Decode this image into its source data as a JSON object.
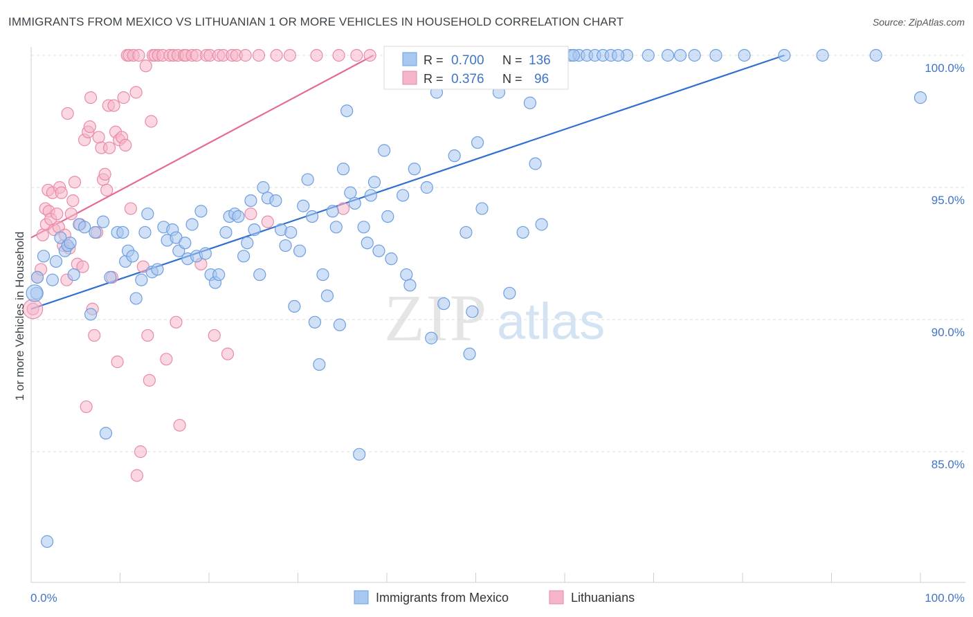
{
  "title": "IMMIGRANTS FROM MEXICO VS LITHUANIAN 1 OR MORE VEHICLES IN HOUSEHOLD CORRELATION CHART",
  "source": "Source: ZipAtlas.com",
  "watermark": {
    "zip": "ZIP",
    "atlas": "atlas"
  },
  "colors": {
    "blue_fill": "#a9c8f0",
    "blue_stroke": "#6d9ee0",
    "blue_line": "#2e6fd1",
    "pink_fill": "#f5b6c9",
    "pink_stroke": "#e98aa8",
    "pink_line": "#e46a94",
    "tick_text": "#3f74c8",
    "grid": "#dcdcdc"
  },
  "legend": {
    "rows": [
      {
        "r_label": "R =",
        "r_value": "0.700",
        "n_label": "N =",
        "n_value": "136"
      },
      {
        "r_label": "R =",
        "r_value": "0.376",
        "n_label": "N =",
        "n_value": "96"
      }
    ]
  },
  "chart_data": {
    "type": "scatter",
    "title": "IMMIGRANTS FROM MEXICO VS LITHUANIAN 1 OR MORE VEHICLES IN HOUSEHOLD CORRELATION CHART",
    "xlabel": "",
    "ylabel": "1 or more Vehicles in Household",
    "xlim": [
      0,
      100
    ],
    "ylim": [
      80.5,
      100.5
    ],
    "x_tick_labels": [
      "0.0%",
      "100.0%"
    ],
    "y_ticks": [
      85,
      90,
      95,
      100
    ],
    "y_tick_labels": [
      "85.0%",
      "90.0%",
      "95.0%",
      "100.0%"
    ],
    "grid": "horizontal-dashed",
    "legend_position": "top-center",
    "series": [
      {
        "name": "Immigrants from Mexico",
        "color": "#a9c8f0",
        "r": 0.7,
        "n": 136,
        "trend": {
          "x": [
            0,
            84.7
          ],
          "y": [
            90.4,
            100.0
          ]
        },
        "points": [
          [
            0.6,
            91.0
          ],
          [
            0.7,
            91.6
          ],
          [
            1.4,
            92.4
          ],
          [
            1.8,
            81.6
          ],
          [
            2.4,
            91.5
          ],
          [
            2.8,
            92.2
          ],
          [
            3.3,
            93.1
          ],
          [
            3.8,
            92.6
          ],
          [
            4.1,
            92.8
          ],
          [
            4.4,
            92.9
          ],
          [
            4.8,
            91.7
          ],
          [
            5.4,
            93.6
          ],
          [
            6.0,
            93.5
          ],
          [
            6.7,
            90.2
          ],
          [
            7.2,
            93.3
          ],
          [
            8.1,
            93.7
          ],
          [
            8.4,
            85.7
          ],
          [
            8.9,
            91.6
          ],
          [
            9.7,
            93.3
          ],
          [
            10.3,
            93.3
          ],
          [
            10.6,
            92.2
          ],
          [
            10.9,
            92.6
          ],
          [
            11.4,
            92.4
          ],
          [
            11.8,
            90.8
          ],
          [
            12.4,
            91.5
          ],
          [
            12.8,
            93.3
          ],
          [
            13.1,
            94.0
          ],
          [
            13.6,
            91.8
          ],
          [
            14.2,
            91.9
          ],
          [
            14.9,
            93.5
          ],
          [
            15.3,
            93.0
          ],
          [
            15.9,
            93.4
          ],
          [
            16.3,
            93.1
          ],
          [
            16.6,
            92.6
          ],
          [
            17.3,
            92.9
          ],
          [
            17.6,
            92.3
          ],
          [
            18.1,
            93.6
          ],
          [
            18.6,
            92.4
          ],
          [
            19.1,
            94.1
          ],
          [
            19.6,
            92.5
          ],
          [
            20.2,
            91.7
          ],
          [
            20.7,
            91.4
          ],
          [
            21.1,
            91.7
          ],
          [
            21.9,
            93.3
          ],
          [
            22.3,
            93.9
          ],
          [
            22.9,
            94.0
          ],
          [
            23.3,
            93.9
          ],
          [
            23.9,
            92.4
          ],
          [
            24.3,
            92.9
          ],
          [
            24.7,
            94.5
          ],
          [
            25.1,
            93.4
          ],
          [
            25.7,
            91.7
          ],
          [
            26.1,
            95.0
          ],
          [
            26.6,
            94.6
          ],
          [
            27.5,
            94.5
          ],
          [
            28.1,
            93.4
          ],
          [
            28.6,
            92.8
          ],
          [
            29.2,
            93.3
          ],
          [
            29.6,
            90.5
          ],
          [
            30.2,
            92.6
          ],
          [
            30.6,
            94.3
          ],
          [
            31.1,
            95.3
          ],
          [
            31.6,
            93.9
          ],
          [
            31.9,
            89.9
          ],
          [
            32.4,
            88.3
          ],
          [
            32.8,
            91.7
          ],
          [
            33.3,
            90.9
          ],
          [
            33.9,
            94.1
          ],
          [
            34.3,
            93.5
          ],
          [
            34.7,
            89.8
          ],
          [
            35.1,
            95.7
          ],
          [
            35.5,
            97.9
          ],
          [
            35.9,
            94.8
          ],
          [
            36.4,
            94.4
          ],
          [
            36.9,
            84.9
          ],
          [
            37.4,
            93.5
          ],
          [
            37.8,
            92.9
          ],
          [
            38.2,
            94.7
          ],
          [
            38.6,
            95.2
          ],
          [
            39.1,
            92.6
          ],
          [
            39.7,
            96.4
          ],
          [
            40.1,
            93.9
          ],
          [
            40.5,
            92.3
          ],
          [
            41.2,
            100.0
          ],
          [
            41.8,
            94.7
          ],
          [
            42.2,
            91.7
          ],
          [
            42.6,
            91.3
          ],
          [
            43.1,
            95.7
          ],
          [
            43.6,
            100.0
          ],
          [
            44.1,
            100.0
          ],
          [
            44.5,
            95.0
          ],
          [
            45.0,
            89.3
          ],
          [
            45.6,
            98.6
          ],
          [
            46.0,
            100.0
          ],
          [
            46.4,
            90.6
          ],
          [
            47.1,
            100.0
          ],
          [
            47.6,
            96.2
          ],
          [
            48.3,
            100.0
          ],
          [
            48.9,
            93.3
          ],
          [
            49.3,
            88.7
          ],
          [
            49.6,
            90.3
          ],
          [
            50.2,
            96.7
          ],
          [
            50.7,
            94.2
          ],
          [
            51.3,
            100.0
          ],
          [
            52.0,
            100.0
          ],
          [
            52.6,
            98.6
          ],
          [
            53.2,
            100.0
          ],
          [
            53.8,
            91.0
          ],
          [
            54.5,
            100.0
          ],
          [
            55.3,
            93.3
          ],
          [
            56.1,
            98.2
          ],
          [
            56.7,
            95.9
          ],
          [
            57.4,
            93.6
          ],
          [
            58.1,
            100.0
          ],
          [
            59.0,
            100.0
          ],
          [
            59.8,
            100.0
          ],
          [
            60.7,
            100.0
          ],
          [
            61.6,
            100.0
          ],
          [
            62.5,
            100.0
          ],
          [
            63.4,
            100.0
          ],
          [
            64.3,
            100.0
          ],
          [
            65.2,
            100.0
          ],
          [
            67.0,
            100.0
          ],
          [
            69.4,
            100.0
          ],
          [
            71.6,
            100.0
          ],
          [
            73.0,
            100.0
          ],
          [
            74.6,
            100.0
          ],
          [
            77.0,
            100.0
          ],
          [
            80.2,
            100.0
          ],
          [
            84.7,
            100.0
          ],
          [
            89.0,
            100.0
          ],
          [
            95.0,
            100.0
          ],
          [
            100.0,
            98.4
          ],
          [
            61.0,
            100.0
          ],
          [
            66.0,
            100.0
          ],
          [
            47.9,
            100.0
          ]
        ]
      },
      {
        "name": "Lithuanians",
        "color": "#f5b6c9",
        "r": 0.376,
        "n": 96,
        "trend": {
          "x": [
            0,
            38.5
          ],
          "y": [
            93.1,
            100.0
          ]
        },
        "points": [
          [
            0.2,
            90.4
          ],
          [
            0.7,
            91.6
          ],
          [
            1.1,
            91.9
          ],
          [
            1.3,
            93.2
          ],
          [
            1.6,
            94.2
          ],
          [
            1.7,
            93.6
          ],
          [
            1.9,
            94.9
          ],
          [
            2.0,
            94.1
          ],
          [
            2.2,
            93.8
          ],
          [
            2.4,
            94.8
          ],
          [
            2.6,
            93.4
          ],
          [
            2.9,
            94.0
          ],
          [
            3.1,
            93.5
          ],
          [
            3.2,
            95.0
          ],
          [
            3.4,
            94.8
          ],
          [
            3.6,
            92.8
          ],
          [
            3.8,
            93.2
          ],
          [
            4.0,
            91.5
          ],
          [
            4.1,
            97.8
          ],
          [
            4.3,
            92.7
          ],
          [
            4.5,
            94.0
          ],
          [
            4.7,
            94.5
          ],
          [
            4.9,
            95.2
          ],
          [
            5.2,
            92.1
          ],
          [
            5.5,
            93.6
          ],
          [
            5.8,
            92.0
          ],
          [
            6.0,
            96.8
          ],
          [
            6.2,
            86.7
          ],
          [
            6.4,
            97.1
          ],
          [
            6.6,
            97.3
          ],
          [
            6.7,
            98.4
          ],
          [
            6.9,
            90.4
          ],
          [
            7.1,
            89.4
          ],
          [
            7.4,
            93.3
          ],
          [
            7.6,
            96.9
          ],
          [
            7.9,
            96.5
          ],
          [
            8.1,
            95.3
          ],
          [
            8.3,
            95.5
          ],
          [
            8.5,
            94.9
          ],
          [
            8.7,
            98.1
          ],
          [
            8.8,
            96.5
          ],
          [
            9.1,
            91.6
          ],
          [
            9.3,
            98.1
          ],
          [
            9.5,
            97.1
          ],
          [
            9.7,
            88.4
          ],
          [
            9.9,
            96.8
          ],
          [
            10.2,
            96.9
          ],
          [
            10.4,
            98.4
          ],
          [
            10.6,
            96.6
          ],
          [
            10.8,
            100.0
          ],
          [
            11.0,
            100.0
          ],
          [
            11.2,
            94.2
          ],
          [
            11.5,
            100.0
          ],
          [
            11.8,
            98.6
          ],
          [
            11.9,
            84.1
          ],
          [
            12.1,
            100.0
          ],
          [
            12.3,
            85.0
          ],
          [
            12.6,
            92.0
          ],
          [
            12.9,
            99.6
          ],
          [
            13.1,
            89.4
          ],
          [
            13.3,
            87.7
          ],
          [
            13.5,
            97.5
          ],
          [
            13.7,
            100.0
          ],
          [
            13.9,
            100.0
          ],
          [
            14.3,
            100.0
          ],
          [
            14.8,
            100.0
          ],
          [
            15.2,
            88.5
          ],
          [
            15.6,
            100.0
          ],
          [
            16.0,
            100.0
          ],
          [
            16.3,
            89.9
          ],
          [
            16.5,
            100.0
          ],
          [
            16.7,
            86.0
          ],
          [
            17.2,
            100.0
          ],
          [
            17.4,
            100.0
          ],
          [
            18.1,
            100.0
          ],
          [
            18.6,
            100.0
          ],
          [
            19.1,
            92.1
          ],
          [
            19.7,
            100.0
          ],
          [
            20.1,
            100.0
          ],
          [
            20.6,
            89.4
          ],
          [
            21.1,
            100.0
          ],
          [
            21.6,
            100.0
          ],
          [
            22.1,
            88.7
          ],
          [
            22.6,
            100.0
          ],
          [
            23.1,
            100.0
          ],
          [
            24.1,
            100.0
          ],
          [
            24.7,
            94.0
          ],
          [
            25.6,
            100.0
          ],
          [
            26.6,
            93.7
          ],
          [
            27.6,
            100.0
          ],
          [
            29.1,
            100.0
          ],
          [
            32.1,
            100.0
          ],
          [
            34.6,
            100.0
          ],
          [
            35.1,
            94.2
          ],
          [
            36.6,
            100.0
          ],
          [
            38.1,
            100.0
          ]
        ]
      }
    ]
  }
}
